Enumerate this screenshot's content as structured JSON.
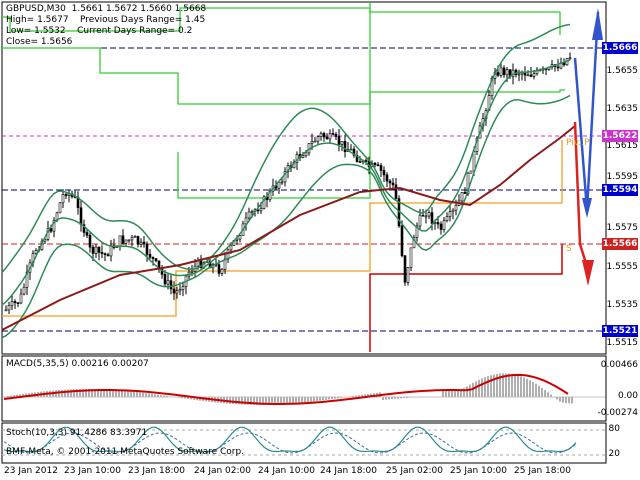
{
  "window": {
    "symbol_line": "GBPUSD,M30  1.5661 1.5672 1.5660 1.5668",
    "high_line": "High= 1.5677",
    "low_line": "Low= 1.5532",
    "close_line": "Close= 1.5656",
    "prev_range_line": "Previous Days Range= 1.45",
    "curr_range_line": "Current Days Range= 0.2",
    "copyright": "BMF-Meta, © 2001-2011 MetaQuotes Software Corp."
  },
  "indicators": {
    "macd_label": "MACD(5,35,5) 0.00216 0.00207",
    "stoch_label": "Stoch(10,3,3) 91.4286 83.3971",
    "macd_ticks": [
      "0.00466",
      "0.00",
      "-0.00274"
    ],
    "stoch_ticks": [
      "80",
      "20"
    ]
  },
  "price_axis": {
    "ticks": [
      "1.5655",
      "1.5635",
      "1.5615",
      "1.5595",
      "1.5575",
      "1.5555",
      "1.5535",
      "1.5515"
    ],
    "highlighted": [
      {
        "label": "1.5666",
        "color": "#0000cc"
      },
      {
        "label": "1.5622",
        "color": "#cc33cc"
      },
      {
        "label": "1.5594",
        "color": "#0000cc"
      },
      {
        "label": "1.5566",
        "color": "#cc2222"
      },
      {
        "label": "1.5521",
        "color": "#0000cc"
      }
    ]
  },
  "pivot_labels": {
    "pivot": "Piv..P",
    "support": "S"
  },
  "time_axis": [
    "23 Jan 2012",
    "23 Jan 10:00",
    "23 Jan 18:00",
    "24 Jan 02:00",
    "24 Jan 10:00",
    "24 Jan 18:00",
    "25 Jan 02:00",
    "25 Jan 10:00",
    "25 Jan 18:00"
  ],
  "colors": {
    "bollinger": "#2e8b57",
    "envelope": "#33cc33",
    "ma": "#8b1a1a",
    "orange": "#f0a020",
    "red_level": "#cc0000",
    "arrows_blue": "#3355cc",
    "arrows_red": "#dd2222"
  }
}
